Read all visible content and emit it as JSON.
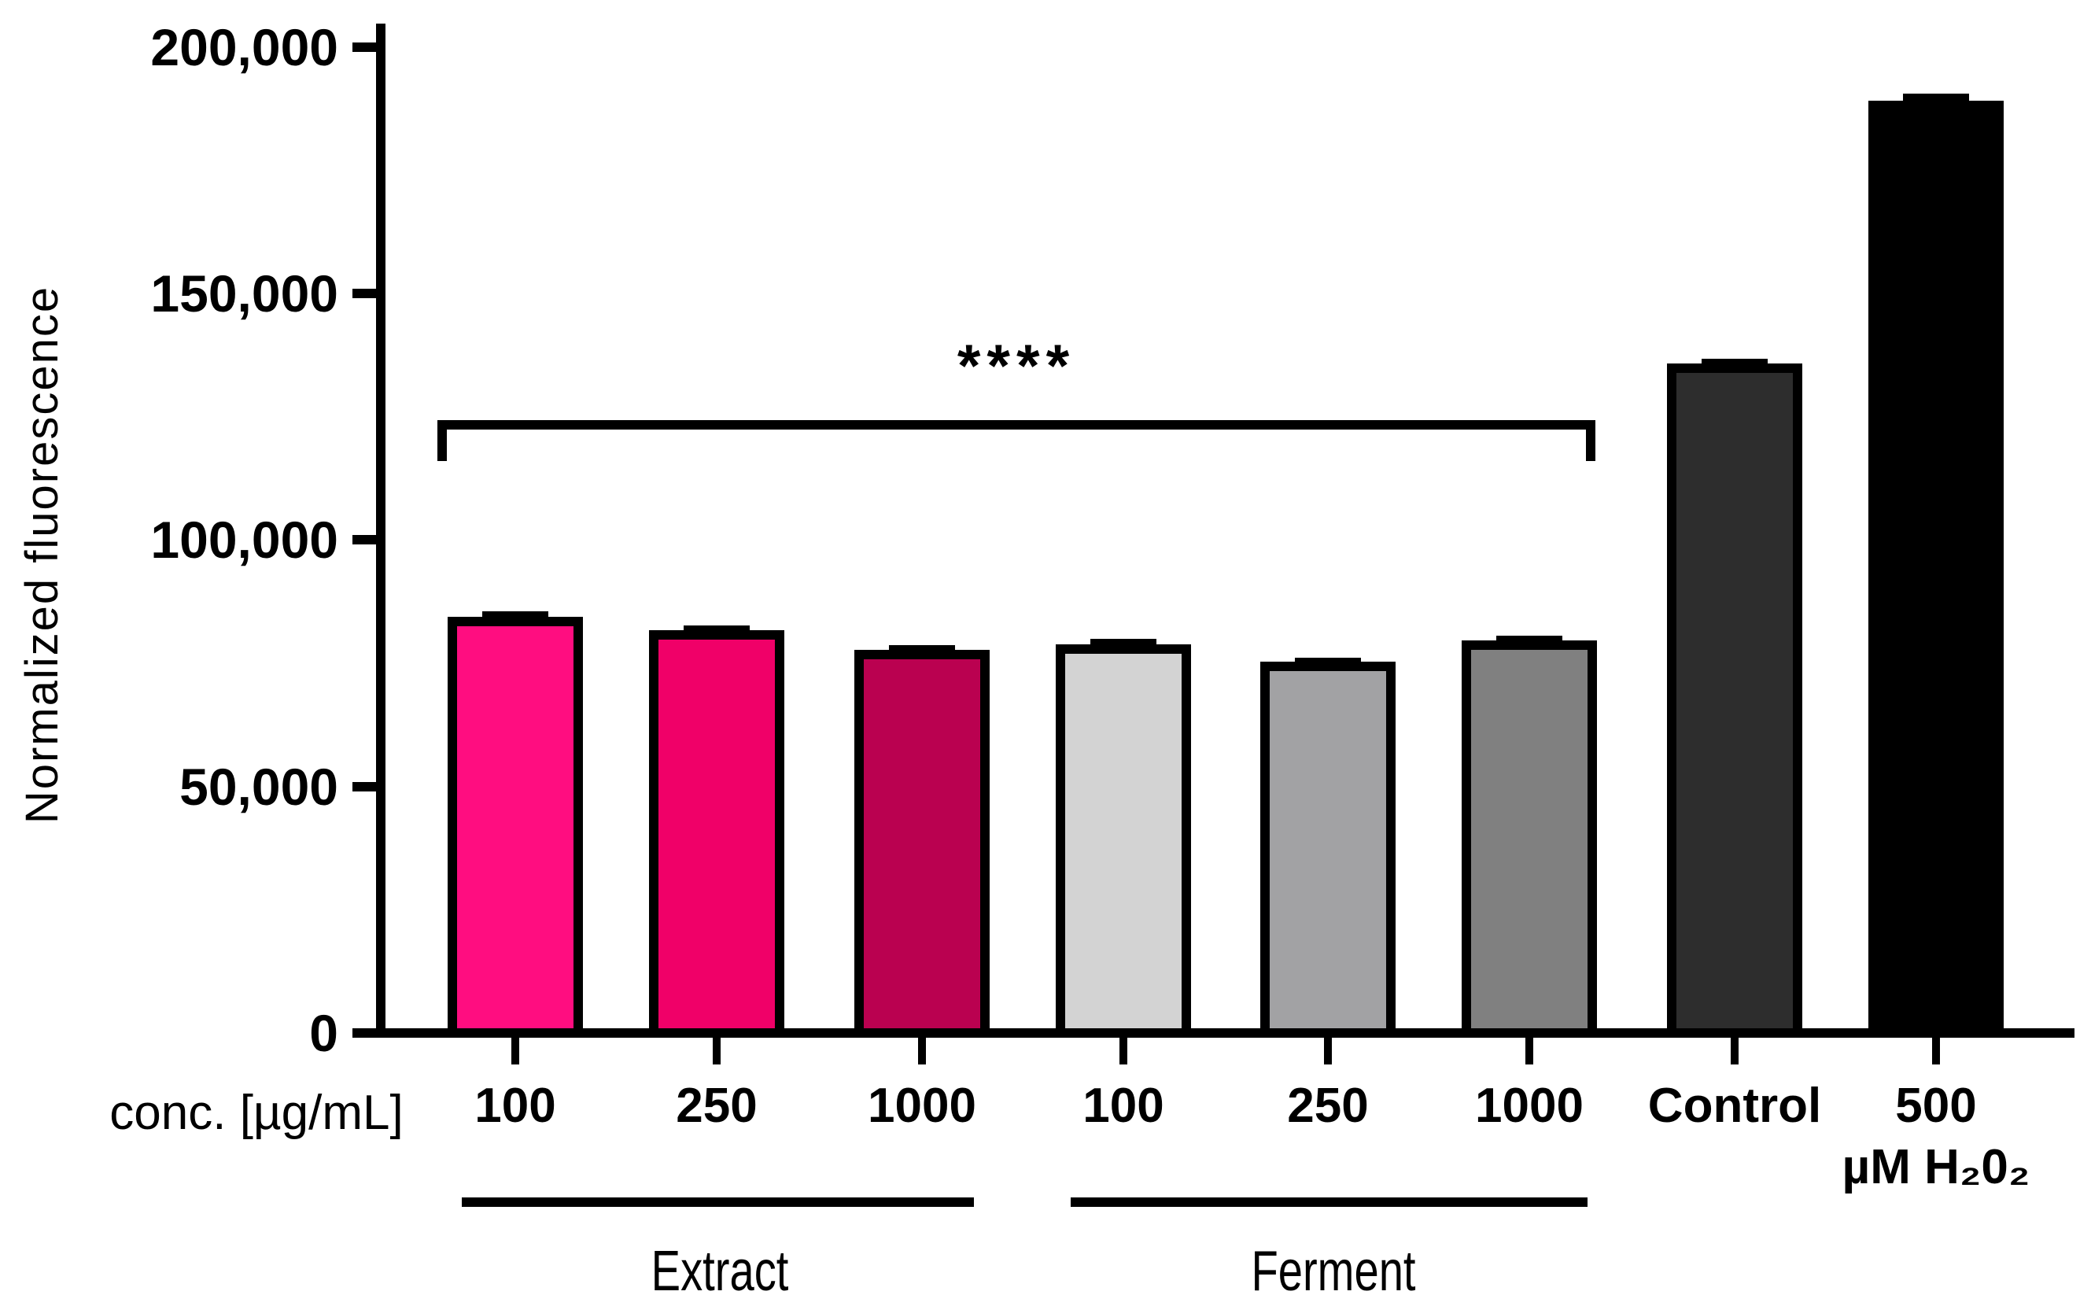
{
  "chart_data": {
    "type": "bar",
    "title": "",
    "ylabel": "Normalized fluorescence",
    "x_axis_unit_label": "conc. [µg/mL]",
    "ylim": [
      0,
      200000
    ],
    "grid": false,
    "legend": "none",
    "yticks": [
      0,
      50000,
      100000,
      150000,
      200000
    ],
    "ytick_labels": [
      "0",
      "50,000",
      "100,000",
      "150,000",
      "200,000"
    ],
    "bars": [
      {
        "label": "100",
        "group": "Extract",
        "value": 84400,
        "error": 1100,
        "color": "#FF0D80"
      },
      {
        "label": "250",
        "group": "Extract",
        "value": 81700,
        "error": 1000,
        "color": "#F00068"
      },
      {
        "label": "1000",
        "group": "Extract",
        "value": 77700,
        "error": 900,
        "color": "#BA0150"
      },
      {
        "label": "100",
        "group": "Ferment",
        "value": 78900,
        "error": 1000,
        "color": "#D3D3D3"
      },
      {
        "label": "250",
        "group": "Ferment",
        "value": 75300,
        "error": 900,
        "color": "#A2A2A4"
      },
      {
        "label": "1000",
        "group": "Ferment",
        "value": 79700,
        "error": 900,
        "color": "#808080"
      },
      {
        "label": "Control",
        "group": "",
        "value": 135800,
        "error": 900,
        "color": "#2D2D2D"
      },
      {
        "label": "500",
        "label_line2": "µM H₂0₂",
        "group": "",
        "value": 189100,
        "error": 1500,
        "color": "#000000"
      }
    ],
    "groups": [
      {
        "name": "Extract"
      },
      {
        "name": "Ferment"
      }
    ],
    "significance": {
      "text": "****",
      "from_bar_index": 0,
      "to_bar_index": 5
    }
  }
}
